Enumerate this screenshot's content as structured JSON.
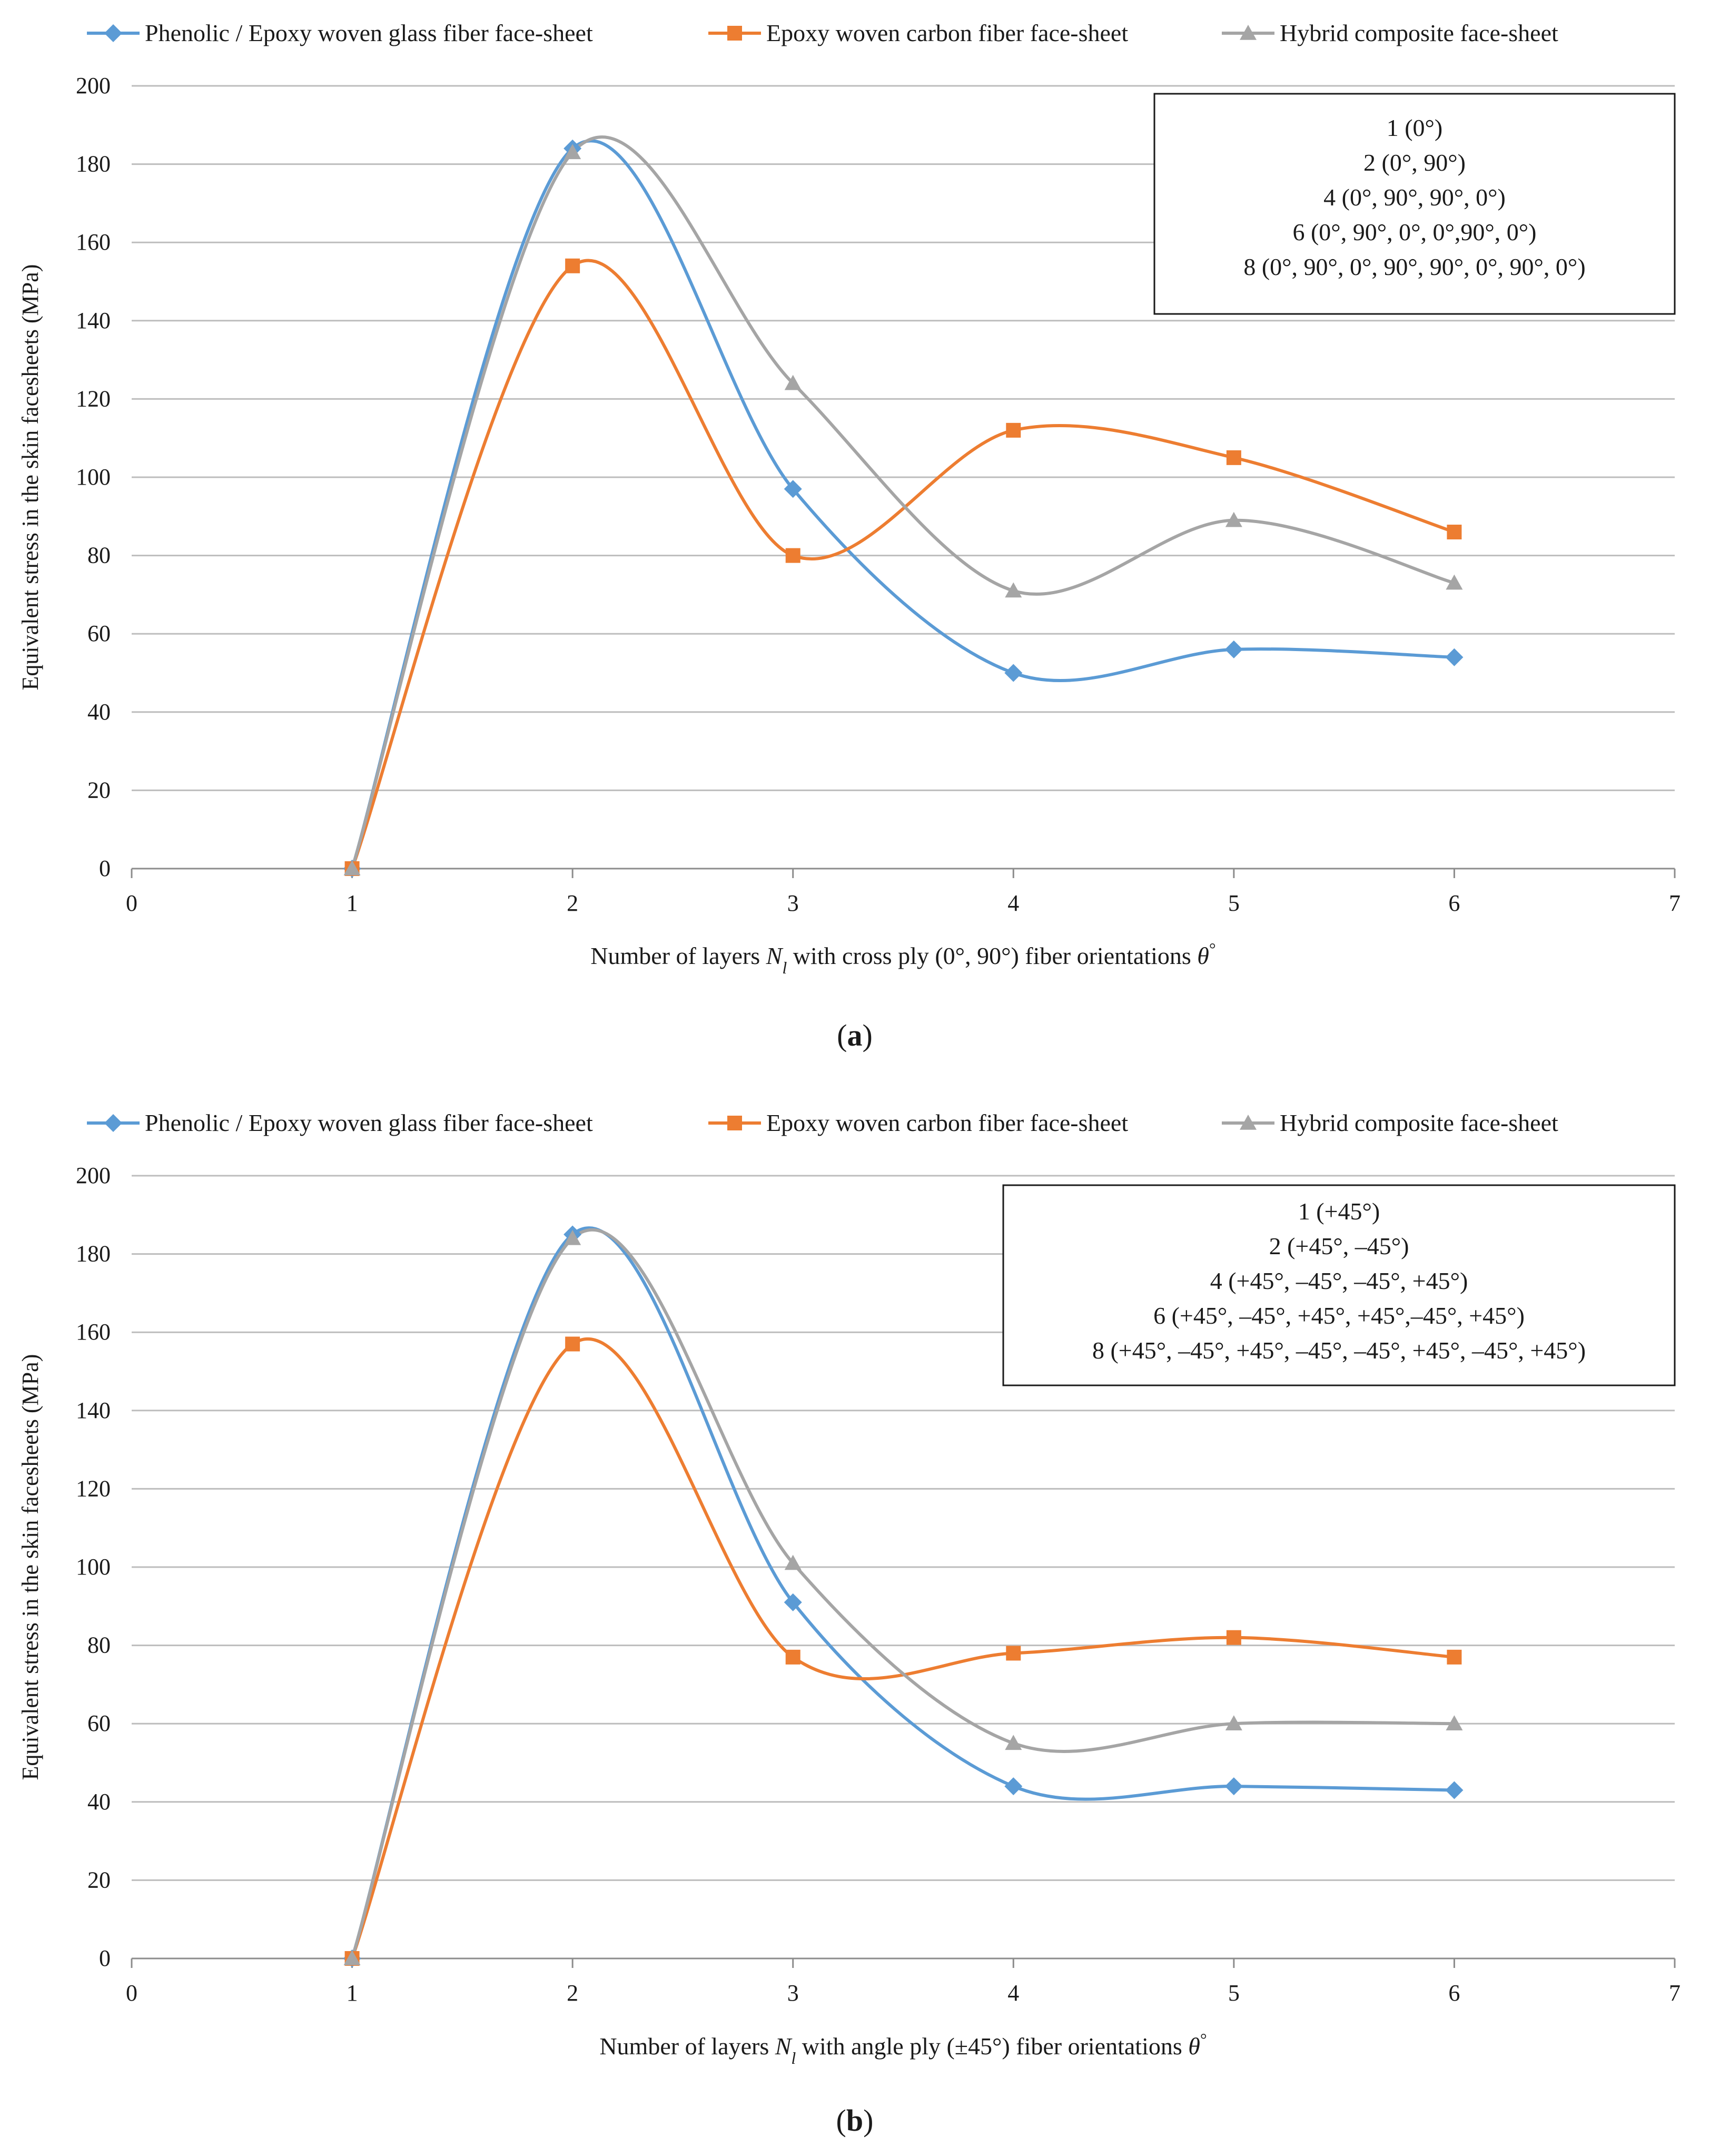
{
  "chart_data": [
    {
      "type": "line",
      "panel_label": "a",
      "xlabel_parts": [
        "Number of layers ",
        "N",
        "l",
        " with cross ply (0°, 90°) fiber orientations ",
        "θ",
        "°"
      ],
      "ylabel": "Equivalent stress in the skin facesheets (MPa)",
      "xlim": [
        0,
        7
      ],
      "ylim": [
        0,
        200
      ],
      "xticks": [
        "0",
        "1",
        "2",
        "3",
        "4",
        "5",
        "6",
        "7"
      ],
      "yticks": [
        "0",
        "20",
        "40",
        "60",
        "80",
        "100",
        "120",
        "140",
        "160",
        "180",
        "200"
      ],
      "grid": "horizontal",
      "legend_position": "top",
      "x": [
        1,
        2,
        3,
        4,
        5,
        6
      ],
      "series": [
        {
          "name": "Phenolic / Epoxy woven glass fiber face-sheet",
          "marker": "diamond",
          "color": "#5B9BD5",
          "values": [
            0,
            184,
            97,
            50,
            56,
            54
          ]
        },
        {
          "name": "Epoxy woven carbon fiber face-sheet",
          "marker": "square",
          "color": "#ED7D31",
          "values": [
            0,
            154,
            80,
            112,
            105,
            86
          ]
        },
        {
          "name": "Hybrid composite face-sheet",
          "marker": "triangle",
          "color": "#A5A5A5",
          "values": [
            0,
            183,
            124,
            71,
            89,
            73
          ]
        }
      ],
      "annotation_lines": [
        "1 (0°)",
        "2 (0°, 90°)",
        "4 (0°, 90°, 90°, 0°)",
        "6 (0°, 90°, 0°, 0°,90°, 0°)",
        "8 (0°, 90°, 0°, 90°, 90°, 0°, 90°,  0°)"
      ]
    },
    {
      "type": "line",
      "panel_label": "b",
      "xlabel_parts": [
        "Number of layers ",
        "N",
        "l",
        " with angle ply (±45°) fiber orientations ",
        "θ",
        "°"
      ],
      "ylabel": "Equivalent stress in the skin facesheets (MPa)",
      "xlim": [
        0,
        7
      ],
      "ylim": [
        0,
        200
      ],
      "xticks": [
        "0",
        "1",
        "2",
        "3",
        "4",
        "5",
        "6",
        "7"
      ],
      "yticks": [
        "0",
        "20",
        "40",
        "60",
        "80",
        "100",
        "120",
        "140",
        "160",
        "180",
        "200"
      ],
      "grid": "horizontal",
      "legend_position": "top",
      "x": [
        1,
        2,
        3,
        4,
        5,
        6
      ],
      "series": [
        {
          "name": "Phenolic / Epoxy woven glass fiber face-sheet",
          "marker": "diamond",
          "color": "#5B9BD5",
          "values": [
            0,
            185,
            91,
            44,
            44,
            43
          ]
        },
        {
          "name": "Epoxy woven carbon fiber face-sheet",
          "marker": "square",
          "color": "#ED7D31",
          "values": [
            0,
            157,
            77,
            78,
            82,
            77
          ]
        },
        {
          "name": "Hybrid composite face-sheet",
          "marker": "triangle",
          "color": "#A5A5A5",
          "values": [
            0,
            184,
            101,
            55,
            60,
            60
          ]
        }
      ],
      "annotation_lines": [
        "1 (+45°)",
        "2 (+45°, –45°)",
        "4 (+45°, –45°, –45°, +45°)",
        "6 (+45°, –45°, +45°, +45°,–45°, +45°)",
        "8 (+45°, –45°, +45°, –45°, –45°, +45°, –45°,  +45°)"
      ]
    }
  ]
}
